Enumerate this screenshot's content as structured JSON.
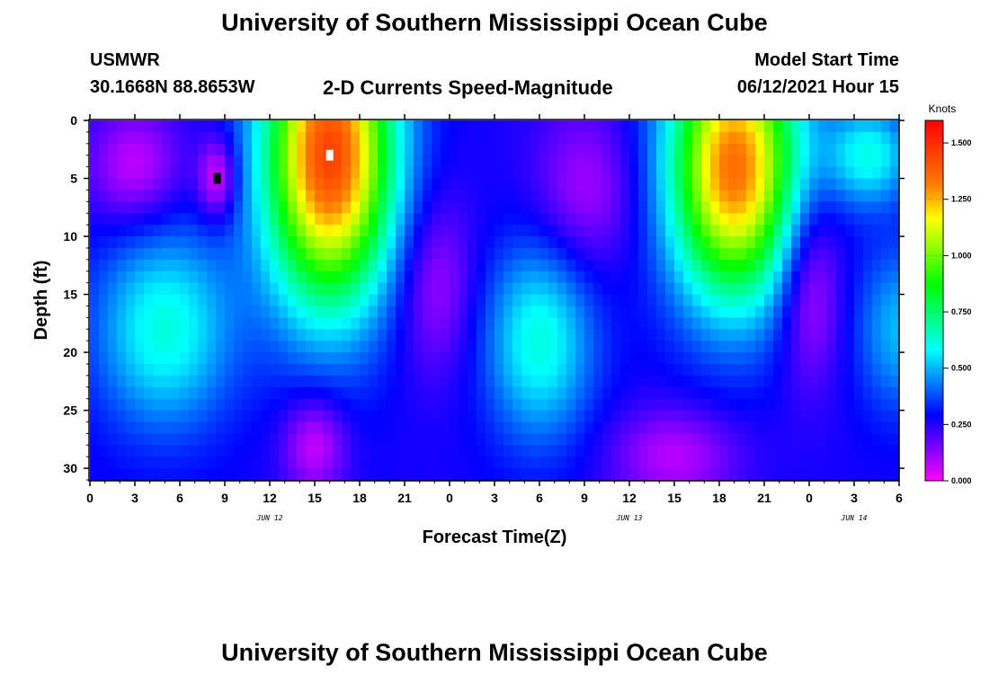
{
  "page": {
    "title_top": "University of Southern Mississippi Ocean Cube",
    "title_bottom": "University of Southern Mississippi Ocean Cube",
    "station": "USMWR",
    "coords": "30.1668N  88.8653W",
    "subtitle": "2-D Currents Speed-Magnitude",
    "model_label": "Model Start Time",
    "model_time": "06/12/2021 Hour 15"
  },
  "chart_data": {
    "type": "heatmap",
    "title": "2-D Currents Speed-Magnitude",
    "xlabel": "Forecast Time(Z)",
    "ylabel": "Depth (ft)",
    "xlim": [
      0,
      54
    ],
    "ylim": [
      31,
      0
    ],
    "x_tick_values": [
      0,
      3,
      6,
      9,
      12,
      15,
      18,
      21,
      24,
      27,
      30,
      33,
      36,
      39,
      42,
      45,
      48,
      51,
      54
    ],
    "x_tick_labels": [
      "0",
      "3",
      "6",
      "9",
      "12",
      "15",
      "18",
      "21",
      "0",
      "3",
      "6",
      "9",
      "12",
      "15",
      "18",
      "21",
      "0",
      "3",
      "6"
    ],
    "y_ticks": [
      0,
      5,
      10,
      15,
      20,
      25,
      30
    ],
    "y_tick_labels": [
      "0",
      "5",
      "10",
      "15",
      "20",
      "25",
      "30"
    ],
    "date_labels": [
      {
        "x": 12,
        "text": "JUN 12"
      },
      {
        "x": 36,
        "text": "JUN 13"
      },
      {
        "x": 51,
        "text": "JUN 14"
      }
    ],
    "colorbar": {
      "title": "Knots",
      "range": [
        0,
        1.6
      ],
      "ticks": [
        0.0,
        0.25,
        0.5,
        0.75,
        1.0,
        1.25,
        1.5
      ],
      "tick_labels": [
        "0.000",
        "0.250",
        "0.500",
        "0.750",
        "1.000",
        "1.250",
        "1.500"
      ],
      "colors": [
        "#ff00ff",
        "#8000ff",
        "#0000ff",
        "#0080ff",
        "#00ffff",
        "#00ff80",
        "#00ff00",
        "#80ff00",
        "#ffff00",
        "#ff8000",
        "#ff4000",
        "#ff0000"
      ]
    },
    "contours": [
      {
        "x": 3,
        "depth": 4,
        "speed": 0.06,
        "sx": 2.2,
        "sd": 3.5
      },
      {
        "x": 8.5,
        "depth": 5,
        "speed": 0.01,
        "sx": 0.9,
        "sd": 2.5
      },
      {
        "x": 16,
        "depth": 3,
        "speed": 1.45,
        "sx": 3.0,
        "sd": 9.0
      },
      {
        "x": 5,
        "depth": 18,
        "speed": 0.62,
        "sx": 3.2,
        "sd": 6.0
      },
      {
        "x": 23,
        "depth": 14,
        "speed": 0.1,
        "sx": 1.8,
        "sd": 5.5
      },
      {
        "x": 15,
        "depth": 28,
        "speed": 0.05,
        "sx": 1.5,
        "sd": 3.0
      },
      {
        "x": 30,
        "depth": 19,
        "speed": 0.62,
        "sx": 2.5,
        "sd": 6.0
      },
      {
        "x": 33,
        "depth": 6,
        "speed": 0.1,
        "sx": 2.5,
        "sd": 5.0
      },
      {
        "x": 43,
        "depth": 4,
        "speed": 1.35,
        "sx": 3.0,
        "sd": 8.0
      },
      {
        "x": 48,
        "depth": 14,
        "speed": 0.05,
        "sx": 1.5,
        "sd": 6.0
      },
      {
        "x": 39,
        "depth": 29,
        "speed": 0.08,
        "sx": 3.0,
        "sd": 3.0
      },
      {
        "x": 52,
        "depth": 3,
        "speed": 0.6,
        "sx": 2.0,
        "sd": 3.0
      },
      {
        "x": 54,
        "depth": 18,
        "speed": 0.5,
        "sx": 2.0,
        "sd": 5.0
      }
    ],
    "markers": [
      {
        "x": 16,
        "depth": 3,
        "color": "#ffffff"
      },
      {
        "x": 8.5,
        "depth": 5,
        "color": "#000000"
      }
    ]
  }
}
